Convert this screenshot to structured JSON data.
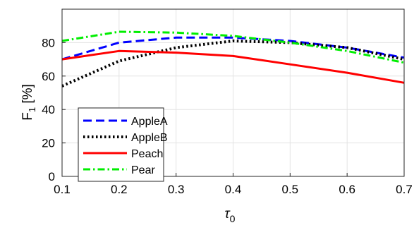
{
  "chart_data": {
    "type": "line",
    "x": [
      0.1,
      0.2,
      0.3,
      0.4,
      0.5,
      0.6,
      0.7
    ],
    "series": [
      {
        "name": "AppleA",
        "values": [
          70,
          80,
          83,
          83,
          81,
          77,
          71
        ],
        "color": "#0000ff",
        "dash": "dashed"
      },
      {
        "name": "AppleB",
        "values": [
          54,
          69,
          77,
          81,
          80,
          77,
          70
        ],
        "color": "#000000",
        "dash": "dotted"
      },
      {
        "name": "Peach",
        "values": [
          70,
          75,
          74,
          72,
          67,
          62,
          56
        ],
        "color": "#ff0000",
        "dash": "solid"
      },
      {
        "name": "Pear",
        "values": [
          81,
          86.5,
          86,
          84,
          80,
          75,
          68
        ],
        "color": "#00ee00",
        "dash": "dash-dot"
      }
    ],
    "xlim": [
      0.1,
      0.7
    ],
    "ylim": [
      0,
      100
    ],
    "xticks": [
      "0.1",
      "0.2",
      "0.3",
      "0.4",
      "0.5",
      "0.6",
      "0.7"
    ],
    "yticks": [
      "0",
      "20",
      "40",
      "60",
      "80"
    ],
    "xlabel": "τ",
    "xlabel_sub": "0",
    "ylabel": "F",
    "ylabel_sub": "1",
    "ylabel_unit": " [%]",
    "grid": true,
    "legend": "bottom-left"
  }
}
